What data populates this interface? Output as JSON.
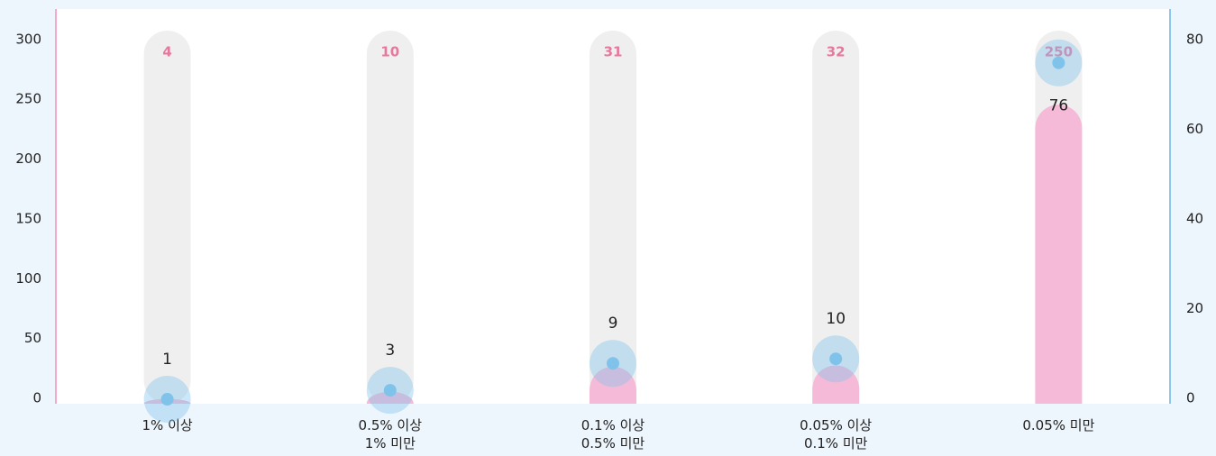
{
  "chart_data": {
    "type": "bar",
    "categories": [
      [
        "1% 이상"
      ],
      [
        "0.5% 이상",
        "1% 미만"
      ],
      [
        "0.1% 이상",
        "0.5% 미만"
      ],
      [
        "0.05% 이상",
        "0.1% 미만"
      ],
      [
        "0.05% 미만"
      ]
    ],
    "series": [
      {
        "type": "bar",
        "color": "#f5bad7",
        "label_color": "#e8779f",
        "values": [
          4,
          10,
          31,
          32,
          250
        ]
      },
      {
        "type": "point",
        "axis": "y2",
        "color": "#7fc3ea",
        "values": [
          1,
          3,
          9,
          10,
          76
        ]
      }
    ],
    "ylim": [
      0,
      330
    ],
    "yticks": [
      0,
      50,
      100,
      150,
      200,
      250,
      300
    ],
    "y2lim": [
      0,
      88
    ],
    "y2ticks": [
      0,
      20,
      40,
      60,
      80
    ]
  }
}
